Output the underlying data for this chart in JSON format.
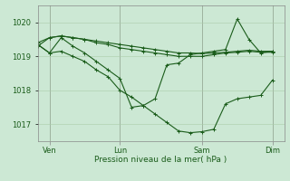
{
  "bg_color": "#cce8d4",
  "grid_color": "#aaccaa",
  "line_color": "#1a5c1a",
  "ylabel": "Pression niveau de la mer( hPa )",
  "ylim": [
    1016.5,
    1020.5
  ],
  "yticks": [
    1017,
    1018,
    1019,
    1020
  ],
  "xtick_labels": [
    "Ven",
    "Lun",
    "Sam",
    "Dim"
  ],
  "xtick_positions": [
    1,
    7,
    14,
    20
  ],
  "x_total_min": 0,
  "x_total_max": 21,
  "line1_x": [
    0,
    1,
    2,
    3,
    4,
    5,
    6,
    7,
    8,
    9,
    10,
    11,
    12,
    13,
    14,
    15,
    16,
    17,
    18,
    19,
    20
  ],
  "line1_y": [
    1019.3,
    1019.55,
    1019.6,
    1019.55,
    1019.5,
    1019.45,
    1019.4,
    1019.35,
    1019.3,
    1019.25,
    1019.2,
    1019.15,
    1019.1,
    1019.1,
    1019.08,
    1019.1,
    1019.12,
    1019.15,
    1019.18,
    1019.15,
    1019.15
  ],
  "line2_x": [
    0,
    1,
    2,
    3,
    4,
    5,
    6,
    7,
    8,
    9,
    10,
    11,
    12,
    13,
    14,
    15,
    16,
    17,
    18,
    19,
    20
  ],
  "line2_y": [
    1019.4,
    1019.55,
    1019.6,
    1019.55,
    1019.5,
    1019.4,
    1019.35,
    1019.25,
    1019.2,
    1019.15,
    1019.1,
    1019.05,
    1019.0,
    1019.0,
    1019.0,
    1019.05,
    1019.1,
    1019.12,
    1019.15,
    1019.12,
    1019.12
  ],
  "line3_x": [
    0,
    1,
    2,
    3,
    4,
    5,
    6,
    7,
    8,
    9,
    10,
    11,
    12,
    13,
    14,
    15,
    16,
    17,
    18,
    19,
    20
  ],
  "line3_y": [
    1019.35,
    1019.1,
    1019.15,
    1019.0,
    1018.85,
    1018.6,
    1018.4,
    1018.0,
    1017.8,
    1017.55,
    1017.3,
    1017.05,
    1016.8,
    1016.75,
    1016.78,
    1016.85,
    1017.6,
    1017.75,
    1017.8,
    1017.85,
    1018.3
  ],
  "line4_x": [
    0,
    1,
    2,
    3,
    4,
    5,
    6,
    7,
    8,
    9,
    10,
    11,
    12,
    13,
    14,
    15,
    16,
    17,
    18,
    19,
    20
  ],
  "line4_y": [
    1019.35,
    1019.1,
    1019.55,
    1019.3,
    1019.1,
    1018.85,
    1018.6,
    1018.35,
    1017.5,
    1017.55,
    1017.75,
    1018.75,
    1018.8,
    1019.05,
    1019.1,
    1019.15,
    1019.2,
    1020.1,
    1019.5,
    1019.1,
    1019.15
  ],
  "vlines": [
    1,
    7,
    14,
    20
  ]
}
